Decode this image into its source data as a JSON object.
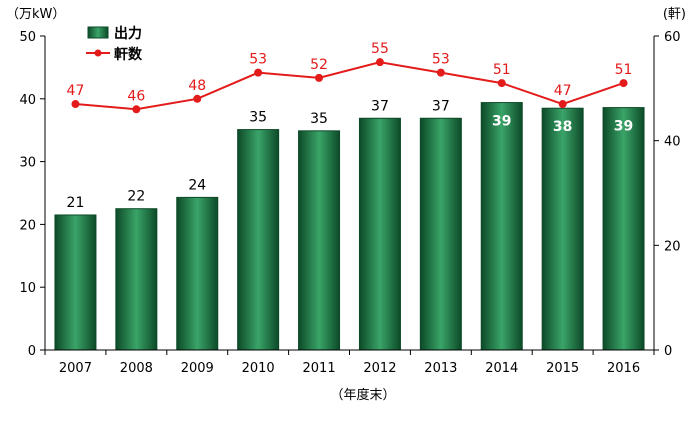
{
  "chart_data": {
    "type": "bar",
    "categories": [
      "2007",
      "2008",
      "2009",
      "2010",
      "2011",
      "2012",
      "2013",
      "2014",
      "2015",
      "2016"
    ],
    "series": [
      {
        "name": "出力",
        "type": "bar",
        "axis": "left",
        "values": [
          21.5,
          22.5,
          24.3,
          35.1,
          34.9,
          36.9,
          36.9,
          39.4,
          38.5,
          38.6
        ],
        "labels": [
          "21",
          "22",
          "24",
          "35",
          "35",
          "37",
          "37",
          "39",
          "38",
          "39"
        ],
        "color": "#1e7a47"
      },
      {
        "name": "軒数",
        "type": "line",
        "axis": "right",
        "values": [
          47,
          46,
          48,
          53,
          52,
          55,
          53,
          51,
          47,
          51
        ],
        "labels": [
          "47",
          "46",
          "48",
          "53",
          "52",
          "55",
          "53",
          "51",
          "47",
          "51"
        ],
        "color": "#e31b1b"
      }
    ],
    "left_axis": {
      "unit": "（万kW）",
      "ylim": [
        0,
        50
      ],
      "ticks": [
        "0",
        "10",
        "20",
        "30",
        "40",
        "50"
      ]
    },
    "right_axis": {
      "unit": "(軒)",
      "ylim": [
        0,
        60
      ],
      "ticks": [
        "0",
        "20",
        "40",
        "60"
      ]
    },
    "xlabel": "（年度末）",
    "inside_label_from_index": 7,
    "grid": false,
    "legend": "top-left"
  }
}
